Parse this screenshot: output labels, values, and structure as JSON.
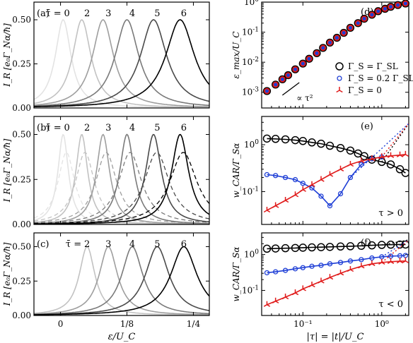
{
  "figure": {
    "left_column": {
      "xlabel": "ε/U_C",
      "x_ticks": [
        "0",
        "1/8",
        "1/4"
      ],
      "x_tick_values": [
        0,
        0.125,
        0.25
      ],
      "xlim": [
        -0.05,
        0.28
      ]
    },
    "right_column": {
      "xlabel": "|τ| = |t|/U_C",
      "x_ticks": [
        "10⁻¹",
        "10⁰"
      ],
      "xlim": [
        0.03,
        2.2
      ]
    }
  },
  "chart_data": [
    {
      "id": "a",
      "type": "line",
      "panel_label": "(a)",
      "ylabel": "I_R [e₀Γ_Nα/ħ]",
      "y_ticks": [
        "0.00",
        "0.25",
        "0.50"
      ],
      "ylim": [
        0,
        0.6
      ],
      "tau_prefix": "τ̄ =",
      "series": [
        {
          "tau": "0",
          "center": 0.005,
          "color": "#e3e3e3",
          "label_x": 0.012
        },
        {
          "tau": "2",
          "center": 0.04,
          "color": "#c2c2c2",
          "label_x": 0.05
        },
        {
          "tau": "3",
          "center": 0.08,
          "color": "#9e9e9e",
          "label_x": 0.09
        },
        {
          "tau": "4",
          "center": 0.125,
          "color": "#7a7a7a",
          "label_x": 0.135
        },
        {
          "tau": "5",
          "center": 0.175,
          "color": "#4a4a4a",
          "label_x": 0.182
        },
        {
          "tau": "6",
          "center": 0.225,
          "color": "#000000",
          "label_x": 0.232
        }
      ]
    },
    {
      "id": "b",
      "type": "line",
      "panel_label": "(b)",
      "ylabel": "I_R [e₀Γ_Nα/ħ]",
      "y_ticks": [
        "0.00",
        "0.25",
        "0.50"
      ],
      "ylim": [
        0,
        0.6
      ],
      "tau_prefix": "τ̄ =",
      "series": [
        {
          "tau": "0",
          "center": 0.005,
          "color": "#e3e3e3",
          "label_x": 0.012
        },
        {
          "tau": "2",
          "center": 0.04,
          "color": "#c2c2c2",
          "label_x": 0.05
        },
        {
          "tau": "3",
          "center": 0.08,
          "color": "#9e9e9e",
          "label_x": 0.09
        },
        {
          "tau": "4",
          "center": 0.125,
          "color": "#7a7a7a",
          "label_x": 0.135
        },
        {
          "tau": "5",
          "center": 0.175,
          "color": "#4a4a4a",
          "label_x": 0.182
        },
        {
          "tau": "6",
          "center": 0.225,
          "color": "#000000",
          "label_x": 0.232
        }
      ]
    },
    {
      "id": "c",
      "type": "line",
      "panel_label": "(c)",
      "ylabel": "I_R [e₀Γ_Nα/ħ]",
      "y_ticks": [
        "0.00",
        "0.25",
        "0.50"
      ],
      "ylim": [
        0,
        0.6
      ],
      "tau_prefix": "τ̄ =",
      "series": [
        {
          "tau": "2",
          "center": 0.05,
          "color": "#c2c2c2",
          "label_x": 0.05
        },
        {
          "tau": "3",
          "center": 0.09,
          "color": "#9e9e9e",
          "label_x": 0.09
        },
        {
          "tau": "4",
          "center": 0.135,
          "color": "#7a7a7a",
          "label_x": 0.135
        },
        {
          "tau": "5",
          "center": 0.182,
          "color": "#4a4a4a",
          "label_x": 0.182
        },
        {
          "tau": "6",
          "center": 0.232,
          "color": "#000000",
          "label_x": 0.232
        }
      ]
    },
    {
      "id": "d",
      "type": "scatter",
      "panel_label": "(d)",
      "ylabel": "ε_max/U_C",
      "y_tick_exponents": [
        -3,
        -2,
        -1,
        0
      ],
      "ylim": [
        0.0003,
        1
      ],
      "y_log": true,
      "x_log": true,
      "x": [
        0.035,
        0.045,
        0.055,
        0.065,
        0.08,
        0.1,
        0.12,
        0.15,
        0.18,
        0.22,
        0.27,
        0.33,
        0.4,
        0.5,
        0.6,
        0.75,
        0.9,
        1.1,
        1.3,
        1.6,
        2.0
      ],
      "y": [
        0.0011,
        0.0018,
        0.0027,
        0.0037,
        0.0058,
        0.009,
        0.013,
        0.02,
        0.03,
        0.045,
        0.065,
        0.095,
        0.14,
        0.2,
        0.28,
        0.38,
        0.5,
        0.6,
        0.7,
        0.8,
        0.9
      ],
      "scaling_label": "∝ τ²",
      "legend": {
        "placement": "lower-right",
        "entries": [
          {
            "label": "Γ_S = Γ_SL",
            "color": "#000000",
            "marker": "circle-large"
          },
          {
            "label": "Γ_S = 0.2 Γ_SL",
            "color": "#1f3fd6",
            "marker": "circle-small"
          },
          {
            "label": "Γ_S = 0",
            "color": "#e01b1b",
            "marker": "tri-star"
          }
        ]
      }
    },
    {
      "id": "e",
      "type": "line",
      "panel_label": "(e)",
      "ylabel": "w_CAR/Γ_Sα",
      "y_tick_exponents": [
        -1,
        0
      ],
      "ylim": [
        0.02,
        4
      ],
      "y_log": true,
      "x_log": true,
      "corner_label": "τ > 0",
      "series": [
        {
          "name": "Γ_S = Γ_SL",
          "color": "#000000",
          "marker": "circle-large",
          "marker_x": [
            0.035,
            0.045,
            0.06,
            0.08,
            0.1,
            0.13,
            0.17,
            0.22,
            0.3,
            0.4,
            0.5,
            0.6,
            0.75,
            1.0,
            1.3,
            1.7,
            2.0
          ],
          "marker_y": [
            1.35,
            1.33,
            1.3,
            1.25,
            1.2,
            1.12,
            1.05,
            0.95,
            0.85,
            0.75,
            0.65,
            0.57,
            0.48,
            0.43,
            0.38,
            0.3,
            0.25
          ]
        },
        {
          "name": "Γ_S = 0.2 Γ_SL",
          "color": "#1f3fd6",
          "marker": "circle-small",
          "marker_x": [
            0.035,
            0.045,
            0.06,
            0.08,
            0.1,
            0.13,
            0.17,
            0.22,
            0.3,
            0.4,
            0.55,
            0.75,
            1.0
          ],
          "marker_y": [
            0.23,
            0.22,
            0.2,
            0.18,
            0.15,
            0.12,
            0.08,
            0.05,
            0.09,
            0.2,
            0.38,
            0.5,
            0.55
          ]
        },
        {
          "name": "Γ_S = 0",
          "color": "#e01b1b",
          "marker": "tri-star",
          "marker_x": [
            0.035,
            0.045,
            0.06,
            0.08,
            0.1,
            0.13,
            0.17,
            0.22,
            0.3,
            0.4,
            0.55,
            0.75,
            1.0,
            1.3,
            1.7,
            2.0
          ],
          "marker_y": [
            0.04,
            0.05,
            0.065,
            0.085,
            0.11,
            0.14,
            0.18,
            0.23,
            0.3,
            0.38,
            0.45,
            0.5,
            0.55,
            0.58,
            0.6,
            0.62
          ]
        }
      ]
    },
    {
      "id": "f",
      "type": "line",
      "panel_label": "(f)",
      "ylabel": "w_CAR/Γ_Sα",
      "y_tick_exponents": [
        -1,
        0
      ],
      "ylim": [
        0.02,
        4
      ],
      "y_log": true,
      "x_log": true,
      "corner_label": "τ < 0",
      "series": [
        {
          "name": "Γ_S = Γ_SL",
          "color": "#000000",
          "marker": "circle-large",
          "marker_x": [
            0.035,
            0.045,
            0.06,
            0.08,
            0.1,
            0.13,
            0.17,
            0.22,
            0.3,
            0.4,
            0.55,
            0.75,
            1.0,
            1.3,
            1.7,
            2.0
          ],
          "marker_y": [
            1.45,
            1.47,
            1.5,
            1.52,
            1.55,
            1.58,
            1.6,
            1.63,
            1.67,
            1.7,
            1.75,
            1.8,
            1.85,
            1.88,
            1.9,
            1.9
          ]
        },
        {
          "name": "Γ_S = 0.2 Γ_SL",
          "color": "#1f3fd6",
          "marker": "circle-small",
          "marker_x": [
            0.035,
            0.045,
            0.06,
            0.08,
            0.1,
            0.13,
            0.17,
            0.22,
            0.3,
            0.4,
            0.55,
            0.75,
            1.0,
            1.3,
            1.7,
            2.0
          ],
          "marker_y": [
            0.31,
            0.33,
            0.36,
            0.4,
            0.43,
            0.47,
            0.5,
            0.55,
            0.6,
            0.66,
            0.72,
            0.8,
            0.86,
            0.9,
            0.92,
            0.94
          ]
        },
        {
          "name": "Γ_S = 0",
          "color": "#e01b1b",
          "marker": "tri-star",
          "marker_x": [
            0.035,
            0.045,
            0.06,
            0.08,
            0.1,
            0.13,
            0.17,
            0.22,
            0.3,
            0.4,
            0.55,
            0.75,
            1.0,
            1.3,
            1.7,
            2.0
          ],
          "marker_y": [
            0.04,
            0.05,
            0.065,
            0.085,
            0.11,
            0.14,
            0.18,
            0.23,
            0.3,
            0.38,
            0.47,
            0.55,
            0.6,
            0.63,
            0.65,
            0.66
          ]
        }
      ]
    }
  ]
}
